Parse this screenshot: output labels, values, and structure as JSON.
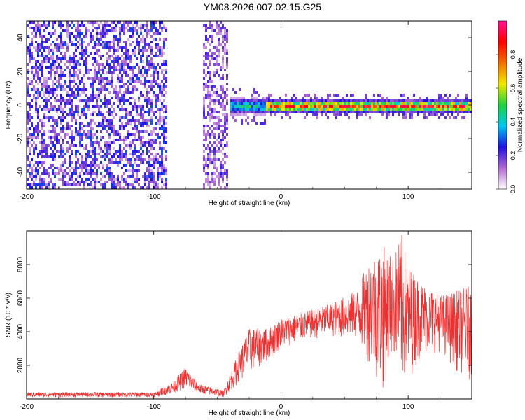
{
  "title": "YM08.2026.007.02.15.G25",
  "spectrogram": {
    "type": "heatmap",
    "xlabel": "Height of straight line (km)",
    "ylabel": "Frequency (Hz)",
    "xlim": [
      -200,
      150
    ],
    "ylim": [
      -50,
      50
    ],
    "xticks": [
      -200,
      -100,
      0,
      100
    ],
    "yticks": [
      -40,
      -20,
      0,
      20,
      40
    ],
    "colorbar": {
      "label": "Normalized spectral amplitude",
      "range": [
        0,
        1
      ],
      "ticks": [
        "0.0",
        "0.2",
        "0.4",
        "0.6",
        "0.8"
      ],
      "stops": [
        "#ffffff",
        "#b06ad0",
        "#2010e0",
        "#00c8f0",
        "#20d040",
        "#f0e800",
        "#f07000",
        "#ff0000",
        "#ff1493"
      ]
    },
    "regions": [
      {
        "name": "noise",
        "x_range": [
          -200,
          -90
        ],
        "freq_spread": 50,
        "level": 0.15
      },
      {
        "name": "noise-patch",
        "x_range": [
          -62,
          -42
        ],
        "freq_spread": 50,
        "level": 0.12
      },
      {
        "name": "weak-band",
        "x_range": [
          -40,
          -12
        ],
        "freq_spread": 4,
        "level": 0.5
      },
      {
        "name": "signal-band",
        "x_range": [
          -12,
          150
        ],
        "freq_center": 0,
        "freq_spread": 3,
        "level": 0.95
      }
    ]
  },
  "snr_chart": {
    "type": "line",
    "xlabel": "Height of straight line (km)",
    "ylabel": "SNR (10 * v/v)",
    "xlim": [
      -200,
      150
    ],
    "ylim": [
      0,
      10000
    ],
    "xticks": [
      -200,
      -100,
      0,
      100
    ],
    "yticks": [
      2000,
      4000,
      6000,
      8000
    ],
    "color": "#f03030",
    "envelope": [
      {
        "x": -200,
        "low": 100,
        "high": 400
      },
      {
        "x": -100,
        "low": 100,
        "high": 400
      },
      {
        "x": -85,
        "low": 300,
        "high": 1000
      },
      {
        "x": -75,
        "low": 600,
        "high": 1900
      },
      {
        "x": -65,
        "low": 300,
        "high": 900
      },
      {
        "x": -45,
        "low": 100,
        "high": 500
      },
      {
        "x": -35,
        "low": 800,
        "high": 2500
      },
      {
        "x": -25,
        "low": 1500,
        "high": 4200
      },
      {
        "x": -10,
        "low": 2200,
        "high": 4200
      },
      {
        "x": 0,
        "low": 3000,
        "high": 4800
      },
      {
        "x": 20,
        "low": 3500,
        "high": 5200
      },
      {
        "x": 40,
        "low": 3700,
        "high": 5700
      },
      {
        "x": 60,
        "low": 3500,
        "high": 6500
      },
      {
        "x": 70,
        "low": 2000,
        "high": 8500
      },
      {
        "x": 80,
        "low": 300,
        "high": 9200
      },
      {
        "x": 88,
        "low": 2500,
        "high": 8500
      },
      {
        "x": 95,
        "low": 500,
        "high": 9800
      },
      {
        "x": 100,
        "low": 1000,
        "high": 8000
      },
      {
        "x": 110,
        "low": 2500,
        "high": 7000
      },
      {
        "x": 125,
        "low": 2800,
        "high": 6200
      },
      {
        "x": 140,
        "low": 1500,
        "high": 6500
      },
      {
        "x": 150,
        "low": 1000,
        "high": 6800
      }
    ]
  }
}
